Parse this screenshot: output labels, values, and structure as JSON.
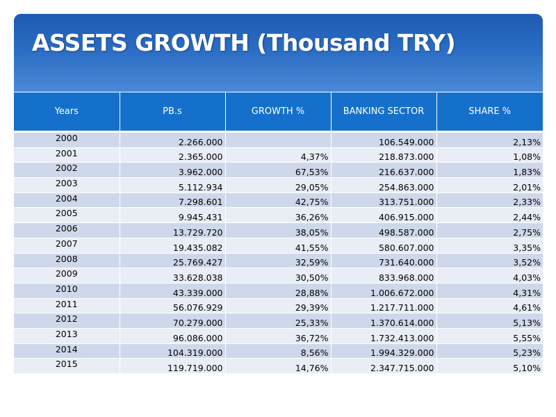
{
  "title": "ASSETS GROWTH (Thousand TRY)",
  "colors": {
    "title_bar": "#2a6cc4",
    "header_bg": "#1570cc",
    "row_dark": "#cfd8ea",
    "row_light": "#e8edf6"
  },
  "table": {
    "headers": [
      "Years",
      "PB.s",
      "GROWTH %",
      "BANKING SECTOR",
      "SHARE %"
    ],
    "rows": [
      {
        "year": "2000",
        "pbs": "2.266.000",
        "growth": "",
        "banking": "106.549.000",
        "share": "2,13%"
      },
      {
        "year": "2001",
        "pbs": "2.365.000",
        "growth": "4,37%",
        "banking": "218.873.000",
        "share": "1,08%"
      },
      {
        "year": "2002",
        "pbs": "3.962.000",
        "growth": "67,53%",
        "banking": "216.637.000",
        "share": "1,83%"
      },
      {
        "year": "2003",
        "pbs": "5.112.934",
        "growth": "29,05%",
        "banking": "254.863.000",
        "share": "2,01%"
      },
      {
        "year": "2004",
        "pbs": "7.298.601",
        "growth": "42,75%",
        "banking": "313.751.000",
        "share": "2,33%"
      },
      {
        "year": "2005",
        "pbs": "9.945.431",
        "growth": "36,26%",
        "banking": "406.915.000",
        "share": "2,44%"
      },
      {
        "year": "2006",
        "pbs": "13.729.720",
        "growth": "38,05%",
        "banking": "498.587.000",
        "share": "2,75%"
      },
      {
        "year": "2007",
        "pbs": "19.435.082",
        "growth": "41,55%",
        "banking": "580.607.000",
        "share": "3,35%"
      },
      {
        "year": "2008",
        "pbs": "25.769.427",
        "growth": "32,59%",
        "banking": "731.640.000",
        "share": "3,52%"
      },
      {
        "year": "2009",
        "pbs": "33.628.038",
        "growth": "30,50%",
        "banking": "833.968.000",
        "share": "4,03%"
      },
      {
        "year": "2010",
        "pbs": "43.339.000",
        "growth": "28,88%",
        "banking": "1.006.672.000",
        "share": "4,31%"
      },
      {
        "year": "2011",
        "pbs": "56.076.929",
        "growth": "29,39%",
        "banking": "1.217.711.000",
        "share": "4,61%"
      },
      {
        "year": "2012",
        "pbs": "70.279.000",
        "growth": "25,33%",
        "banking": "1.370.614.000",
        "share": "5,13%"
      },
      {
        "year": "2013",
        "pbs": "96.086.000",
        "growth": "36,72%",
        "banking": "1.732.413.000",
        "share": "5,55%"
      },
      {
        "year": "2014",
        "pbs": "104.319.000",
        "growth": "8,56%",
        "banking": "1.994.329.000",
        "share": "5,23%"
      },
      {
        "year": "2015",
        "pbs": "119.719.000",
        "growth": "14,76%",
        "banking": "2.347.715.000",
        "share": "5,10%"
      }
    ]
  }
}
